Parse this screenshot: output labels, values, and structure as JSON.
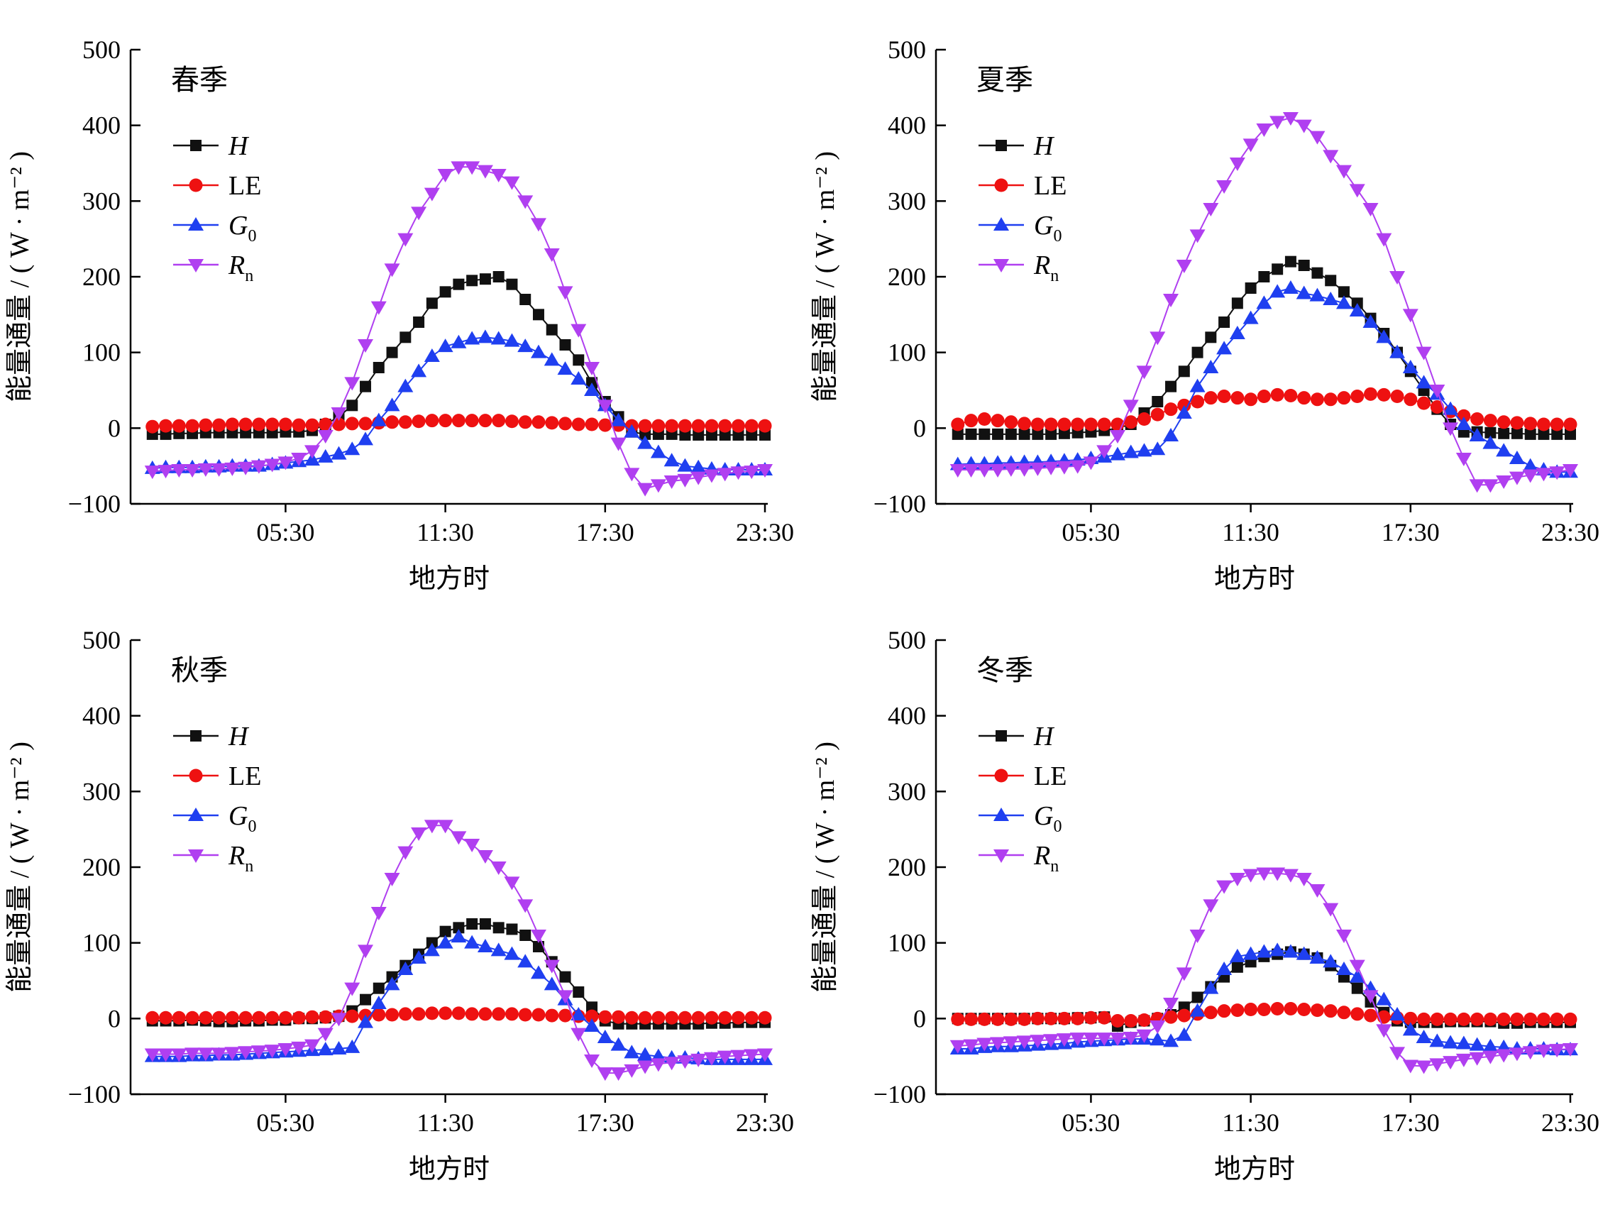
{
  "figure": {
    "xlabel": "地方时",
    "ylabel": "能量通量 / ( W · m⁻² )",
    "xticks": [
      "05:30",
      "11:30",
      "17:30",
      "23:30"
    ],
    "yticks": [
      "500",
      "400",
      "300",
      "200",
      "100",
      "0",
      "−100"
    ],
    "legend": [
      {
        "key": "H",
        "main": "H",
        "sub": "",
        "italic": true,
        "color": "#111111",
        "marker": "square"
      },
      {
        "key": "LE",
        "main": "LE",
        "sub": "",
        "italic": false,
        "color": "#ee1111",
        "marker": "circle"
      },
      {
        "key": "G0",
        "main": "G",
        "sub": "0",
        "italic": true,
        "color": "#1f3ff0",
        "marker": "triangle-up"
      },
      {
        "key": "Rn",
        "main": "R",
        "sub": "n",
        "italic": true,
        "color": "#b03ff0",
        "marker": "triangle-down"
      }
    ]
  },
  "chart_data": [
    {
      "type": "line",
      "season": "春季",
      "xlabel": "地方时",
      "ylabel": "能量通量 / ( W · m⁻² )",
      "x_unit": "hour of day (30-min intervals)",
      "x": [
        0.5,
        1,
        1.5,
        2,
        2.5,
        3,
        3.5,
        4,
        4.5,
        5,
        5.5,
        6,
        6.5,
        7,
        7.5,
        8,
        8.5,
        9,
        9.5,
        10,
        10.5,
        11,
        11.5,
        12,
        12.5,
        13,
        13.5,
        14,
        14.5,
        15,
        15.5,
        16,
        16.5,
        17,
        17.5,
        18,
        18.5,
        19,
        19.5,
        20,
        20.5,
        21,
        21.5,
        22,
        22.5,
        23,
        23.5
      ],
      "xlim": [
        0.5,
        23.5
      ],
      "ylim": [
        -100,
        500
      ],
      "series": [
        {
          "name": "H",
          "values": [
            -8,
            -8,
            -7,
            -7,
            -6,
            -6,
            -6,
            -6,
            -6,
            -6,
            -5,
            -5,
            -3,
            5,
            15,
            30,
            55,
            80,
            100,
            120,
            140,
            165,
            180,
            190,
            195,
            197,
            200,
            190,
            170,
            150,
            130,
            110,
            90,
            60,
            35,
            15,
            -5,
            -8,
            -8,
            -8,
            -9,
            -9,
            -9,
            -9,
            -9,
            -9,
            -9
          ]
        },
        {
          "name": "LE",
          "values": [
            2,
            3,
            3,
            3,
            4,
            4,
            5,
            5,
            5,
            5,
            5,
            4,
            4,
            5,
            5,
            6,
            6,
            7,
            8,
            8,
            9,
            10,
            10,
            10,
            10,
            10,
            10,
            9,
            8,
            8,
            7,
            6,
            5,
            5,
            4,
            4,
            3,
            3,
            3,
            3,
            3,
            3,
            3,
            3,
            3,
            3,
            3
          ]
        },
        {
          "name": "G0",
          "values": [
            -53,
            -52,
            -52,
            -52,
            -51,
            -51,
            -50,
            -50,
            -50,
            -48,
            -46,
            -44,
            -42,
            -38,
            -34,
            -28,
            -15,
            10,
            30,
            55,
            75,
            95,
            108,
            113,
            118,
            120,
            118,
            115,
            108,
            100,
            90,
            78,
            65,
            50,
            30,
            10,
            -5,
            -20,
            -32,
            -43,
            -50,
            -52,
            -54,
            -55,
            -55,
            -55,
            -55
          ]
        },
        {
          "name": "Rn",
          "values": [
            -57,
            -56,
            -55,
            -55,
            -54,
            -54,
            -53,
            -52,
            -50,
            -48,
            -45,
            -40,
            -30,
            -10,
            20,
            60,
            110,
            160,
            210,
            250,
            285,
            310,
            335,
            345,
            345,
            340,
            335,
            325,
            300,
            270,
            230,
            180,
            130,
            80,
            30,
            -20,
            -60,
            -80,
            -75,
            -70,
            -68,
            -65,
            -62,
            -60,
            -58,
            -57,
            -55
          ]
        }
      ]
    },
    {
      "type": "line",
      "season": "夏季",
      "xlabel": "地方时",
      "ylabel": "能量通量 / ( W · m⁻² )",
      "x_unit": "hour of day (30-min intervals)",
      "x": [
        0.5,
        1,
        1.5,
        2,
        2.5,
        3,
        3.5,
        4,
        4.5,
        5,
        5.5,
        6,
        6.5,
        7,
        7.5,
        8,
        8.5,
        9,
        9.5,
        10,
        10.5,
        11,
        11.5,
        12,
        12.5,
        13,
        13.5,
        14,
        14.5,
        15,
        15.5,
        16,
        16.5,
        17,
        17.5,
        18,
        18.5,
        19,
        19.5,
        20,
        20.5,
        21,
        21.5,
        22,
        22.5,
        23,
        23.5
      ],
      "xlim": [
        0.5,
        23.5
      ],
      "ylim": [
        -100,
        500
      ],
      "series": [
        {
          "name": "H",
          "values": [
            -8,
            -8,
            -8,
            -8,
            -8,
            -8,
            -8,
            -8,
            -7,
            -6,
            -5,
            -3,
            0,
            5,
            20,
            35,
            55,
            75,
            100,
            120,
            140,
            165,
            185,
            200,
            210,
            220,
            215,
            205,
            195,
            180,
            165,
            145,
            125,
            100,
            75,
            50,
            25,
            5,
            -5,
            -5,
            -6,
            -7,
            -7,
            -8,
            -8,
            -8,
            -8
          ]
        },
        {
          "name": "LE",
          "values": [
            5,
            10,
            12,
            10,
            8,
            6,
            5,
            5,
            5,
            5,
            5,
            5,
            5,
            8,
            12,
            18,
            25,
            30,
            35,
            40,
            42,
            40,
            38,
            42,
            44,
            43,
            40,
            38,
            38,
            40,
            42,
            45,
            44,
            42,
            38,
            33,
            28,
            22,
            16,
            12,
            10,
            8,
            7,
            6,
            5,
            5,
            5
          ]
        },
        {
          "name": "G0",
          "values": [
            -48,
            -47,
            -47,
            -46,
            -46,
            -45,
            -45,
            -44,
            -43,
            -42,
            -40,
            -38,
            -35,
            -32,
            -30,
            -28,
            -10,
            20,
            55,
            80,
            105,
            125,
            145,
            165,
            180,
            185,
            178,
            175,
            170,
            165,
            155,
            140,
            120,
            100,
            80,
            60,
            45,
            25,
            5,
            -10,
            -20,
            -30,
            -40,
            -50,
            -55,
            -58,
            -58
          ]
        },
        {
          "name": "Rn",
          "values": [
            -55,
            -55,
            -55,
            -55,
            -54,
            -54,
            -53,
            -52,
            -51,
            -50,
            -45,
            -30,
            -10,
            30,
            75,
            120,
            170,
            215,
            255,
            290,
            320,
            350,
            375,
            395,
            405,
            410,
            400,
            385,
            360,
            340,
            315,
            290,
            250,
            200,
            150,
            100,
            50,
            0,
            -40,
            -75,
            -75,
            -70,
            -65,
            -62,
            -60,
            -58,
            -55
          ]
        }
      ]
    },
    {
      "type": "line",
      "season": "秋季",
      "xlabel": "地方时",
      "ylabel": "能量通量 / ( W · m⁻² )",
      "x_unit": "hour of day (30-min intervals)",
      "x": [
        0.5,
        1,
        1.5,
        2,
        2.5,
        3,
        3.5,
        4,
        4.5,
        5,
        5.5,
        6,
        6.5,
        7,
        7.5,
        8,
        8.5,
        9,
        9.5,
        10,
        10.5,
        11,
        11.5,
        12,
        12.5,
        13,
        13.5,
        14,
        14.5,
        15,
        15.5,
        16,
        16.5,
        17,
        17.5,
        18,
        18.5,
        19,
        19.5,
        20,
        20.5,
        21,
        21.5,
        22,
        22.5,
        23,
        23.5
      ],
      "xlim": [
        0.5,
        23.5
      ],
      "ylim": [
        -100,
        500
      ],
      "series": [
        {
          "name": "H",
          "values": [
            -3,
            -3,
            -3,
            -2,
            -3,
            -4,
            -4,
            -3,
            -3,
            -2,
            -2,
            0,
            0,
            1,
            3,
            10,
            25,
            40,
            55,
            70,
            85,
            100,
            115,
            120,
            125,
            125,
            120,
            118,
            110,
            95,
            75,
            55,
            35,
            15,
            -3,
            -7,
            -7,
            -7,
            -7,
            -7,
            -7,
            -7,
            -6,
            -6,
            -5,
            -5,
            -5
          ]
        },
        {
          "name": "LE",
          "values": [
            1,
            1,
            1,
            1,
            1,
            1,
            1,
            1,
            1,
            1,
            1,
            1,
            2,
            2,
            3,
            3,
            4,
            5,
            5,
            6,
            6,
            7,
            7,
            7,
            6,
            6,
            6,
            6,
            5,
            5,
            4,
            4,
            3,
            3,
            2,
            2,
            1,
            1,
            1,
            1,
            1,
            1,
            1,
            1,
            1,
            1,
            1
          ]
        },
        {
          "name": "G0",
          "values": [
            -50,
            -50,
            -50,
            -49,
            -49,
            -48,
            -48,
            -47,
            -46,
            -45,
            -44,
            -43,
            -42,
            -41,
            -40,
            -38,
            -5,
            20,
            45,
            65,
            80,
            90,
            100,
            108,
            100,
            95,
            90,
            85,
            75,
            60,
            45,
            25,
            5,
            -10,
            -25,
            -35,
            -45,
            -48,
            -50,
            -52,
            -52,
            -53,
            -54,
            -54,
            -54,
            -54,
            -54
          ]
        },
        {
          "name": "Rn",
          "values": [
            -47,
            -47,
            -47,
            -46,
            -46,
            -46,
            -45,
            -44,
            -43,
            -42,
            -40,
            -38,
            -35,
            -20,
            0,
            40,
            90,
            140,
            185,
            220,
            245,
            255,
            255,
            240,
            230,
            215,
            200,
            180,
            150,
            110,
            70,
            30,
            -20,
            -55,
            -72,
            -72,
            -68,
            -63,
            -60,
            -58,
            -56,
            -54,
            -52,
            -50,
            -49,
            -48,
            -47
          ]
        }
      ]
    },
    {
      "type": "line",
      "season": "冬季",
      "xlabel": "地方时",
      "ylabel": "能量通量 / ( W · m⁻² )",
      "x_unit": "hour of day (30-min intervals)",
      "x": [
        0.5,
        1,
        1.5,
        2,
        2.5,
        3,
        3.5,
        4,
        4.5,
        5,
        5.5,
        6,
        6.5,
        7,
        7.5,
        8,
        8.5,
        9,
        9.5,
        10,
        10.5,
        11,
        11.5,
        12,
        12.5,
        13,
        13.5,
        14,
        14.5,
        15,
        15.5,
        16,
        16.5,
        17,
        17.5,
        18,
        18.5,
        19,
        19.5,
        20,
        20.5,
        21,
        21.5,
        22,
        22.5,
        23,
        23.5
      ],
      "xlim": [
        0.5,
        23.5
      ],
      "ylim": [
        -100,
        500
      ],
      "series": [
        {
          "name": "H",
          "values": [
            0,
            0,
            0,
            0,
            0,
            0,
            0,
            0,
            0,
            1,
            1,
            2,
            -10,
            -5,
            -3,
            0,
            5,
            15,
            28,
            42,
            55,
            68,
            75,
            82,
            85,
            88,
            85,
            80,
            70,
            55,
            40,
            22,
            8,
            -3,
            -5,
            -5,
            -5,
            -4,
            -4,
            -4,
            -4,
            -6,
            -6,
            -5,
            -5,
            -5,
            -5
          ]
        },
        {
          "name": "LE",
          "values": [
            -1,
            -1,
            -1,
            -1,
            -1,
            -1,
            0,
            0,
            0,
            0,
            1,
            1,
            -3,
            -3,
            -2,
            0,
            2,
            4,
            6,
            8,
            10,
            11,
            12,
            12,
            13,
            13,
            12,
            11,
            10,
            8,
            6,
            4,
            2,
            1,
            0,
            -1,
            -1,
            -1,
            -1,
            -1,
            -1,
            -1,
            -1,
            -1,
            -1,
            -1,
            -1
          ]
        },
        {
          "name": "G0",
          "values": [
            -40,
            -40,
            -38,
            -37,
            -37,
            -36,
            -35,
            -34,
            -33,
            -31,
            -30,
            -29,
            -28,
            -27,
            -27,
            -28,
            -30,
            -22,
            10,
            40,
            65,
            82,
            85,
            88,
            90,
            88,
            85,
            80,
            75,
            65,
            55,
            40,
            25,
            5,
            -15,
            -25,
            -30,
            -32,
            -33,
            -35,
            -37,
            -38,
            -40,
            -40,
            -40,
            -41,
            -41
          ]
        },
        {
          "name": "Rn",
          "values": [
            -36,
            -35,
            -33,
            -32,
            -31,
            -30,
            -29,
            -28,
            -27,
            -26,
            -26,
            -26,
            -26,
            -25,
            -22,
            -10,
            20,
            60,
            110,
            150,
            175,
            185,
            190,
            192,
            192,
            190,
            185,
            170,
            145,
            110,
            70,
            30,
            -15,
            -45,
            -62,
            -63,
            -60,
            -57,
            -54,
            -52,
            -50,
            -48,
            -46,
            -44,
            -42,
            -41,
            -40
          ]
        }
      ]
    }
  ]
}
